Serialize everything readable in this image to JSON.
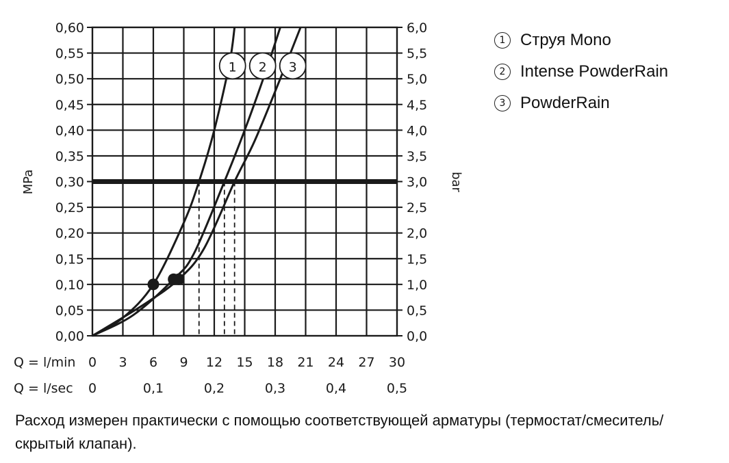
{
  "chart_data": {
    "type": "line",
    "ylabel_left": "MPa",
    "ylabel_right": "bar",
    "y_left": {
      "min": 0,
      "max": 0.6,
      "step": 0.05,
      "tick_labels": [
        "0,00",
        "0,05",
        "0,10",
        "0,15",
        "0,20",
        "0,25",
        "0,30",
        "0,35",
        "0,40",
        "0,45",
        "0,50",
        "0,55",
        "0,60"
      ]
    },
    "y_right": {
      "min": 0,
      "max": 6,
      "step": 0.5,
      "tick_labels": [
        "0,0",
        "0,5",
        "1,0",
        "1,5",
        "2,0",
        "2,5",
        "3,0",
        "3,5",
        "4,0",
        "4,5",
        "5,0",
        "5,5",
        "6,0"
      ]
    },
    "x_primary": {
      "label": "Q = l/min",
      "min": 0,
      "max": 30,
      "ticks": [
        0,
        3,
        6,
        9,
        12,
        15,
        18,
        21,
        24,
        27,
        30
      ],
      "tick_labels": [
        "0",
        "3",
        "6",
        "9",
        "12",
        "15",
        "18",
        "21",
        "24",
        "27",
        "30"
      ]
    },
    "x_secondary": {
      "label": "Q = l/sec",
      "ticks": [
        0,
        6,
        12,
        18,
        24,
        30
      ],
      "tick_labels": [
        "0",
        "0,1",
        "0,2",
        "0,3",
        "0,4",
        "0,5"
      ]
    },
    "grid": true,
    "reference_line": {
      "y": 0.3
    },
    "series": [
      {
        "name": "Струя Mono",
        "marker": "1",
        "x": [
          0,
          3,
          6,
          9,
          10.5,
          12,
          13.5,
          14
        ],
        "y": [
          0,
          0.035,
          0.1,
          0.22,
          0.3,
          0.4,
          0.53,
          0.6
        ],
        "operating_point": {
          "x": 6,
          "y": 0.1
        },
        "flow_at_reference": 10.5
      },
      {
        "name": "Intense PowderRain",
        "marker": "2",
        "x": [
          0,
          4,
          8,
          10,
          13,
          15,
          17,
          18.5
        ],
        "y": [
          0,
          0.04,
          0.11,
          0.16,
          0.3,
          0.4,
          0.51,
          0.6
        ],
        "operating_point": {
          "x": 8,
          "y": 0.11
        },
        "flow_at_reference": 13
      },
      {
        "name": "PowderRain",
        "marker": "3",
        "x": [
          0,
          5,
          8.5,
          11,
          14,
          16,
          18.5,
          20.5
        ],
        "y": [
          0,
          0.06,
          0.11,
          0.17,
          0.3,
          0.38,
          0.5,
          0.6
        ],
        "operating_point": {
          "x": 8.5,
          "y": 0.11
        },
        "flow_at_reference": 14
      }
    ],
    "legend_position": "top-right"
  },
  "footnote": "Расход измерен практически с помощью соответствующей арматуры (термостат/смеситель/скрытый клапан).",
  "colors": {
    "ink": "#1a1a1a"
  }
}
